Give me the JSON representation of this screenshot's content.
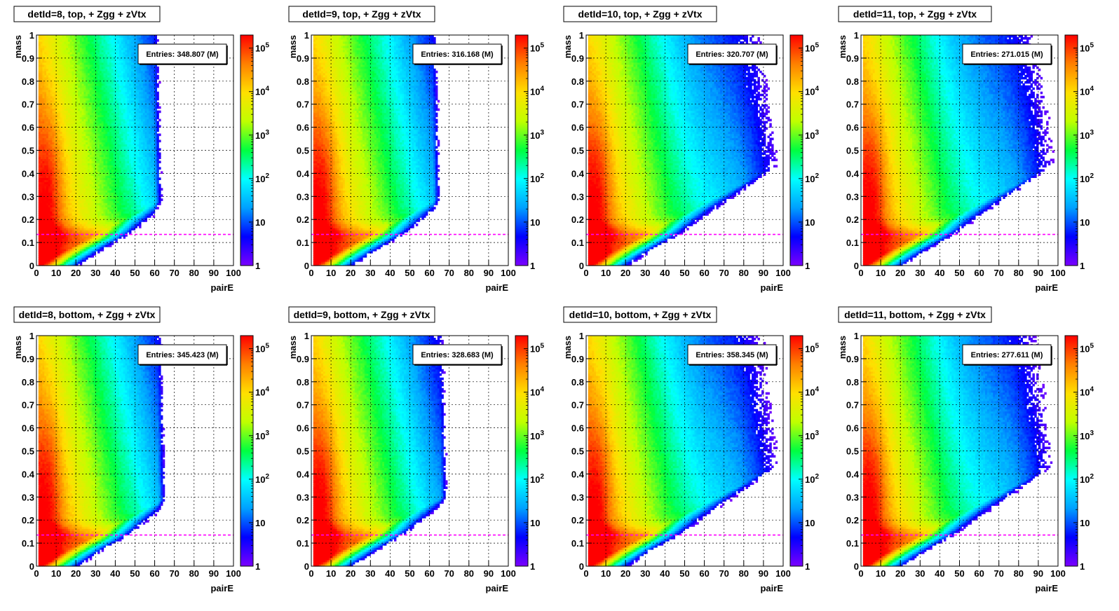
{
  "chart_data": [
    {
      "type": "heatmap",
      "title": "detId=8, top, + Zgg + zVtx",
      "xlabel": "pairE",
      "ylabel": "mass",
      "xlim": [
        0,
        100
      ],
      "ylim": [
        0,
        1
      ],
      "zscale": "log",
      "zlim": [
        1,
        200000
      ],
      "entries": "Entries: 348.807 (M)",
      "reference_line_y": 0.135,
      "spread": 60,
      "grid": true
    },
    {
      "type": "heatmap",
      "title": "detId=9, top, + Zgg + zVtx",
      "xlabel": "pairE",
      "ylabel": "mass",
      "xlim": [
        0,
        100
      ],
      "ylim": [
        0,
        1
      ],
      "zscale": "log",
      "zlim": [
        1,
        200000
      ],
      "entries": "Entries: 316.168 (M)",
      "reference_line_y": 0.135,
      "spread": 62,
      "grid": true
    },
    {
      "type": "heatmap",
      "title": "detId=10, top, + Zgg + zVtx",
      "xlabel": "pairE",
      "ylabel": "mass",
      "xlim": [
        0,
        100
      ],
      "ylim": [
        0,
        1
      ],
      "zscale": "log",
      "zlim": [
        1,
        200000
      ],
      "entries": "Entries: 320.707 (M)",
      "reference_line_y": 0.135,
      "spread": 100,
      "grid": true
    },
    {
      "type": "heatmap",
      "title": "detId=11, top, + Zgg + zVtx",
      "xlabel": "pairE",
      "ylabel": "mass",
      "xlim": [
        0,
        100
      ],
      "ylim": [
        0,
        1
      ],
      "zscale": "log",
      "zlim": [
        1,
        200000
      ],
      "entries": "Entries: 271.015 (M)",
      "reference_line_y": 0.135,
      "spread": 100,
      "grid": true
    },
    {
      "type": "heatmap",
      "title": "detId=8, bottom, + Zgg + zVtx",
      "xlabel": "pairE",
      "ylabel": "mass",
      "xlim": [
        0,
        100
      ],
      "ylim": [
        0,
        1
      ],
      "zscale": "log",
      "zlim": [
        1,
        200000
      ],
      "entries": "Entries: 345.423 (M)",
      "reference_line_y": 0.135,
      "spread": 62,
      "grid": true
    },
    {
      "type": "heatmap",
      "title": "detId=9, bottom, + Zgg + zVtx",
      "xlabel": "pairE",
      "ylabel": "mass",
      "xlim": [
        0,
        100
      ],
      "ylim": [
        0,
        1
      ],
      "zscale": "log",
      "zlim": [
        1,
        200000
      ],
      "entries": "Entries: 328.683 (M)",
      "reference_line_y": 0.135,
      "spread": 66,
      "grid": true
    },
    {
      "type": "heatmap",
      "title": "detId=10, bottom, + Zgg + zVtx",
      "xlabel": "pairE",
      "ylabel": "mass",
      "xlim": [
        0,
        100
      ],
      "ylim": [
        0,
        1
      ],
      "zscale": "log",
      "zlim": [
        1,
        200000
      ],
      "entries": "Entries: 358.345 (M)",
      "reference_line_y": 0.135,
      "spread": 100,
      "grid": true
    },
    {
      "type": "heatmap",
      "title": "detId=11, bottom, + Zgg + zVtx",
      "xlabel": "pairE",
      "ylabel": "mass",
      "xlim": [
        0,
        100
      ],
      "ylim": [
        0,
        1
      ],
      "zscale": "log",
      "zlim": [
        1,
        200000
      ],
      "entries": "Entries: 277.611 (M)",
      "reference_line_y": 0.135,
      "spread": 100,
      "grid": true
    }
  ],
  "colors": {
    "reference_line": "#ff00ff",
    "palette": [
      "#7a00ff",
      "#0000ff",
      "#00a0ff",
      "#00ffff",
      "#00ff40",
      "#c0ff00",
      "#ffe000",
      "#ff8000",
      "#ff0000"
    ]
  },
  "x_ticks": [
    0,
    10,
    20,
    30,
    40,
    50,
    60,
    70,
    80,
    90,
    100
  ],
  "x_tick_labels": [
    "0",
    "10",
    "20",
    "30",
    "40",
    "50",
    "60",
    "70",
    "80",
    "90",
    "100"
  ],
  "y_ticks": [
    0,
    0.1,
    0.2,
    0.3,
    0.4,
    0.5,
    0.6,
    0.7,
    0.8,
    0.9,
    1
  ],
  "y_tick_labels": [
    "0",
    "0.1",
    "0.2",
    "0.3",
    "0.4",
    "0.5",
    "0.6",
    "0.7",
    "0.8",
    "0.9",
    "1"
  ],
  "z_ticks": [
    {
      "value": 1,
      "label": "1",
      "power": ""
    },
    {
      "value": 10,
      "label": "10",
      "power": ""
    },
    {
      "value": 100,
      "label": "10",
      "power": "2"
    },
    {
      "value": 1000,
      "label": "10",
      "power": "3"
    },
    {
      "value": 10000,
      "label": "10",
      "power": "4"
    },
    {
      "value": 100000,
      "label": "10",
      "power": "5"
    }
  ]
}
